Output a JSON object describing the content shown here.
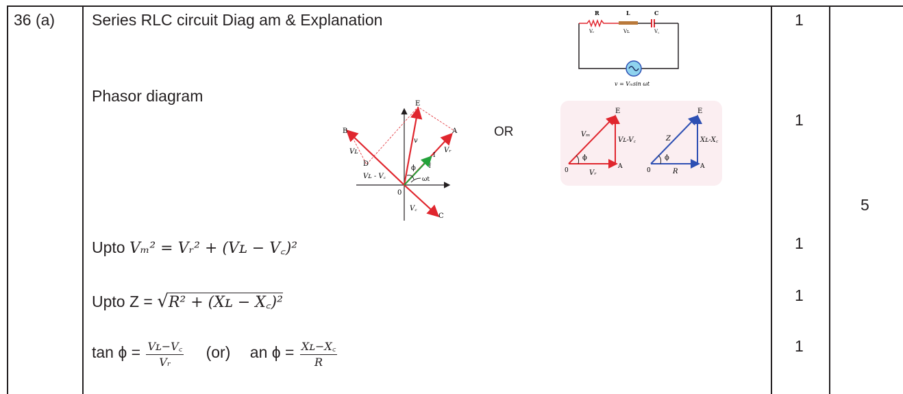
{
  "question": {
    "number": "36 (a)",
    "heading": "Series RLC circuit Diag  am &  Explanation",
    "phasor_label": "Phasor diagram",
    "or_text": "OR",
    "eq1_prefix": "Upto",
    "eq1": "Vₘ² =  Vᵣ² +  (Vʟ − V꜀)²",
    "eq2_prefix": "Upto Z =",
    "eq2": "R² +  (Xʟ − X꜀)²",
    "tan_label": "tan ϕ =",
    "tan_num": "Vʟ−V꜀",
    "tan_den": "Vᵣ",
    "or_paren": "(or)",
    "an_label": "an ϕ =",
    "an_num": "Xʟ−X꜀",
    "an_den": "R"
  },
  "circuit": {
    "label_R": "R",
    "label_L": "L",
    "label_C": "C",
    "label_VR": "Vᵣ",
    "label_VL": "Vʟ",
    "label_VC": "V꜀",
    "source_eq": "v = Vₘsin ωt"
  },
  "phasor": {
    "E": "E",
    "B": "B",
    "A": "A",
    "C": "C",
    "D": "D",
    "O": "0",
    "VL": "Vʟ",
    "VR": "Vᵣ",
    "VC": "V꜀",
    "VLVC": "Vʟ - V꜀",
    "v": "v",
    "i": "i",
    "I": "I",
    "phi": "ϕ",
    "wt": "ωt"
  },
  "triangles": {
    "t1_E": "E",
    "t1_Vm": "Vₘ",
    "t1_VLVC": "Vʟ-V꜀",
    "t1_phi": "ϕ",
    "t1_O": "0",
    "t1_VR": "Vᵣ",
    "t1_A": "A",
    "t2_E": "E",
    "t2_Z": "Z",
    "t2_XLXC": "Xʟ-X꜀",
    "t2_phi": "ϕ",
    "t2_O": "0",
    "t2_R": "R",
    "t2_A": "A"
  },
  "marks": [
    "1",
    "1",
    "1",
    "1",
    "1"
  ],
  "total": "5",
  "colors": {
    "red": "#e0262e",
    "blue": "#2d4fb3",
    "green": "#23a23a",
    "pink_bg": "#fbeef1",
    "ink": "#231f20"
  }
}
